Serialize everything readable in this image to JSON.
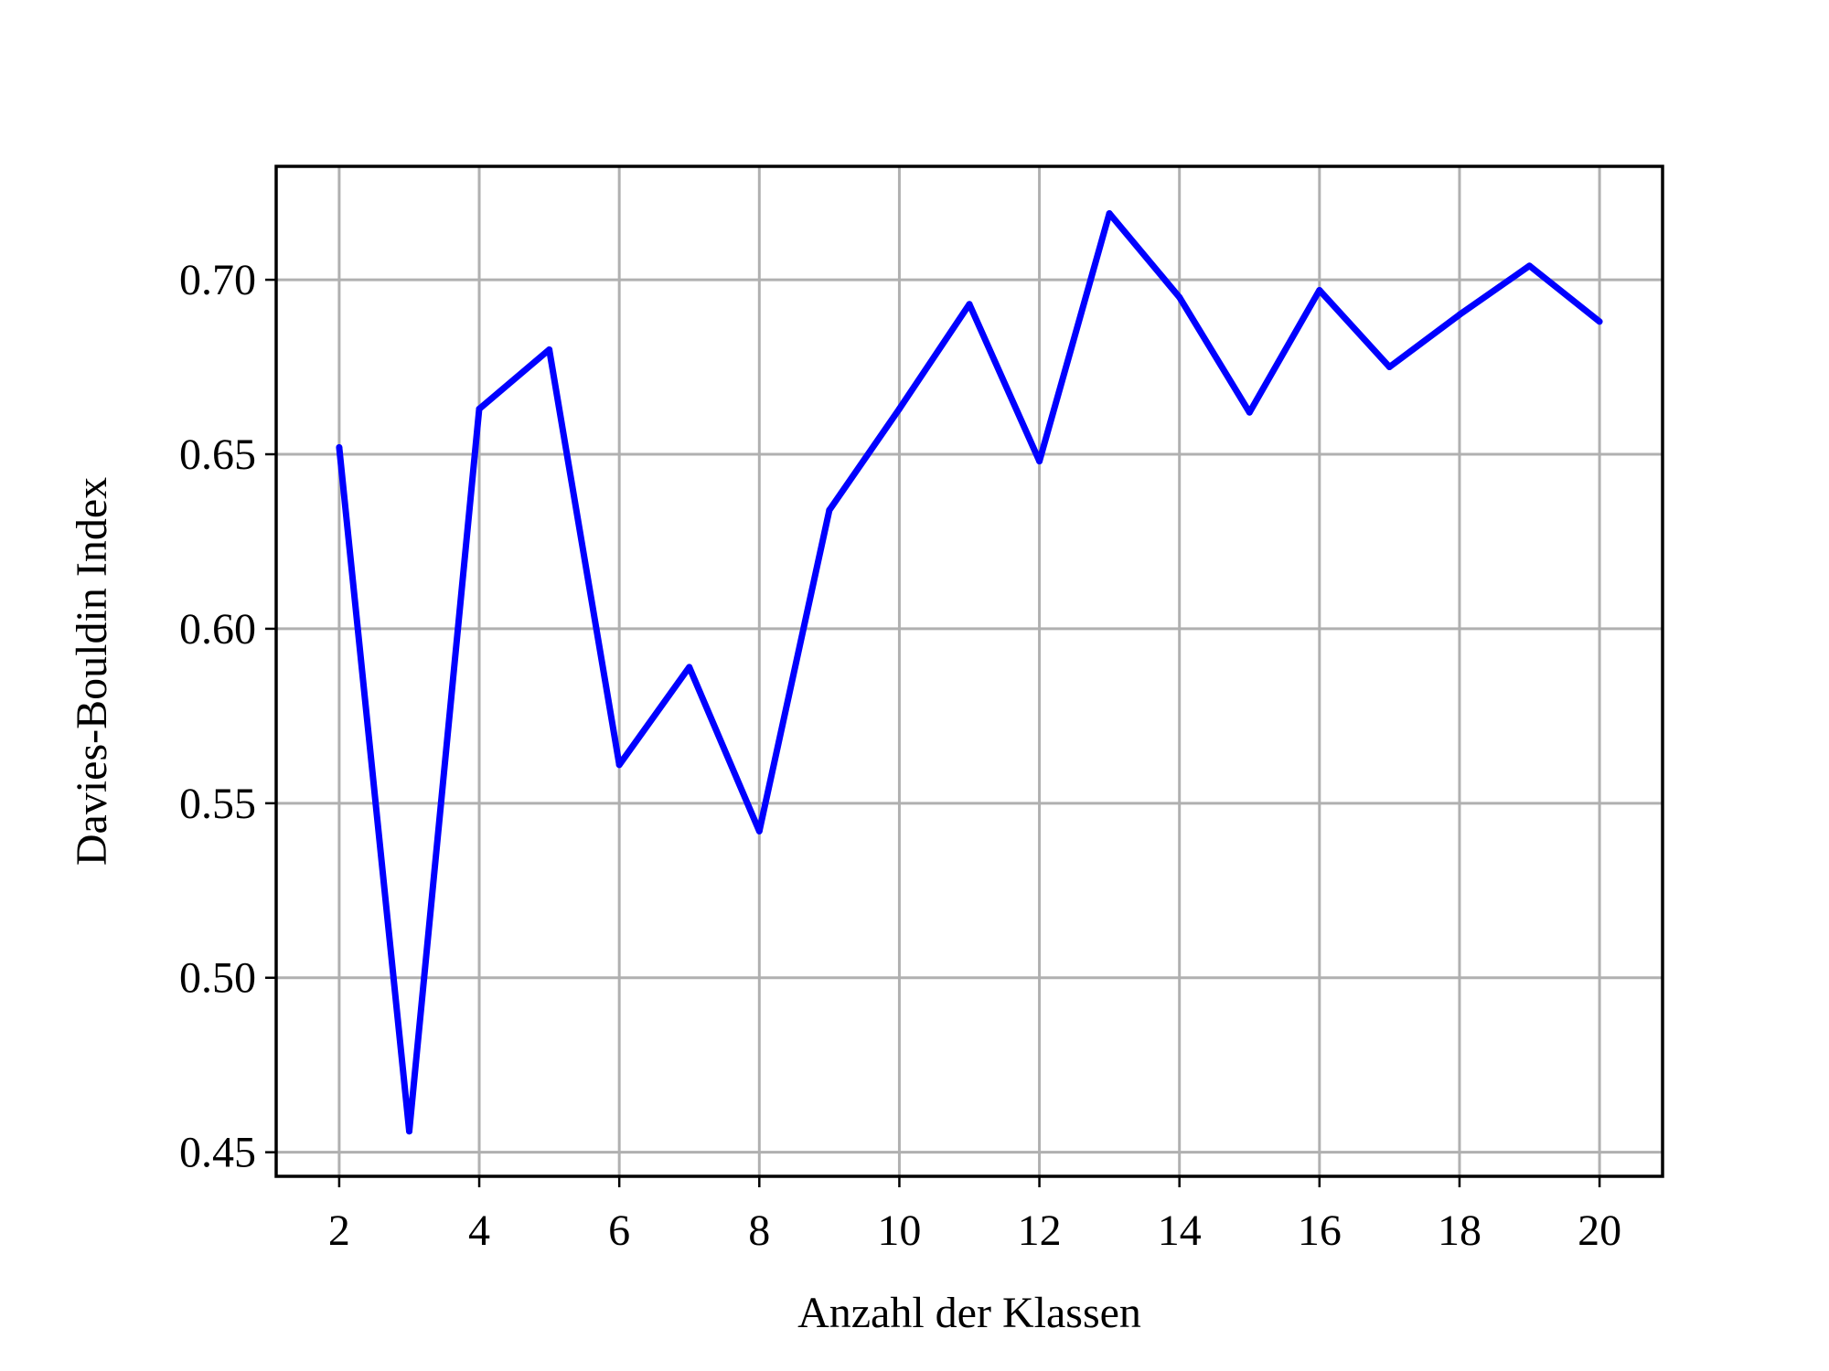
{
  "chart_data": {
    "type": "line",
    "title": "",
    "xlabel": "Anzahl der Klassen",
    "ylabel": "Davies-Bouldin Index",
    "xlim": [
      1.1,
      20.9
    ],
    "ylim": [
      0.4431,
      0.7325
    ],
    "x_ticks": [
      2,
      4,
      6,
      8,
      10,
      12,
      14,
      16,
      18,
      20
    ],
    "x_tick_labels": [
      "2",
      "4",
      "6",
      "8",
      "10",
      "12",
      "14",
      "16",
      "18",
      "20"
    ],
    "y_ticks": [
      0.45,
      0.5,
      0.55,
      0.6,
      0.65,
      0.7
    ],
    "y_tick_labels": [
      "0.45",
      "0.50",
      "0.55",
      "0.60",
      "0.65",
      "0.70"
    ],
    "grid": true,
    "legend": "none",
    "x": [
      2,
      3,
      4,
      5,
      6,
      7,
      8,
      9,
      10,
      11,
      12,
      13,
      14,
      15,
      16,
      17,
      18,
      19,
      20
    ],
    "series": [
      {
        "color": "#0000ff",
        "values": [
          0.652,
          0.456,
          0.663,
          0.68,
          0.561,
          0.589,
          0.542,
          0.634,
          0.663,
          0.693,
          0.648,
          0.719,
          0.695,
          0.662,
          0.697,
          0.675,
          0.69,
          0.704,
          0.688
        ]
      }
    ]
  }
}
